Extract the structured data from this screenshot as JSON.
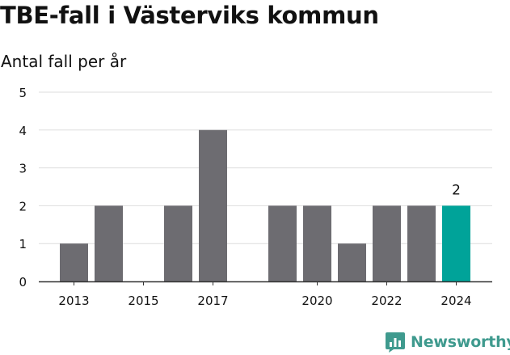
{
  "colors": {
    "bar": "#6d6c71",
    "highlight": "#00a399",
    "grid": "#dddddd",
    "axis": "#333333",
    "text": "#111111",
    "brand": "#3f9a8e"
  },
  "brand": {
    "name": "Newsworthy",
    "icon": "newsworthy-chart-icon"
  },
  "chart_data": {
    "type": "bar",
    "title": "TBE-fall i Västerviks kommun",
    "subtitle": "Antal fall per år",
    "xlabel": "",
    "ylabel": "",
    "categories": [
      "2013",
      "2014",
      "2015",
      "2016",
      "2017",
      "2018",
      "2019",
      "2020",
      "2021",
      "2022",
      "2023",
      "2024"
    ],
    "values": [
      1,
      2,
      0,
      2,
      4,
      0,
      2,
      2,
      1,
      2,
      2,
      2
    ],
    "x_tick_labels": [
      "2013",
      "2015",
      "2017",
      "2020",
      "2022",
      "2024"
    ],
    "y_ticks": [
      0,
      1,
      2,
      3,
      4,
      5
    ],
    "ylim": [
      0,
      5
    ],
    "grid": true,
    "legend": "none",
    "highlight_category": "2024",
    "data_labels": [
      {
        "category": "2024",
        "text": "2"
      }
    ]
  }
}
